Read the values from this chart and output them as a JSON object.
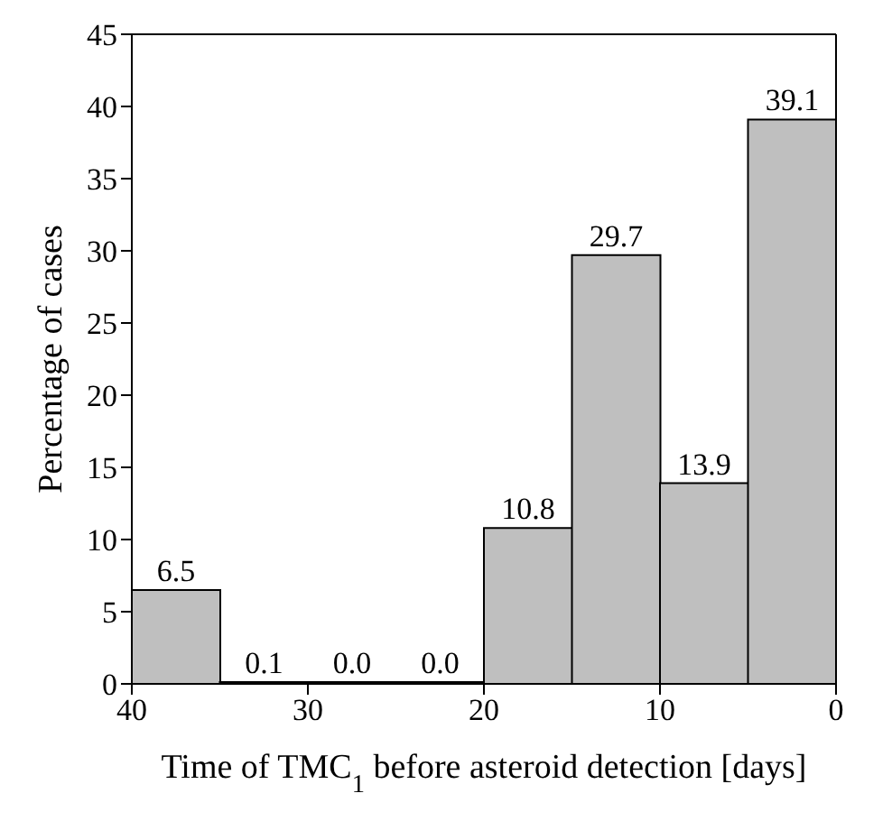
{
  "chart_data": {
    "type": "histogram",
    "xlabel": "Time of TMC$_{1}$ before asteroid detection [days]",
    "ylabel": "Percentage of cases",
    "bins": [
      40,
      35,
      30,
      25,
      20,
      15,
      10,
      5,
      0
    ],
    "values": [
      6.5,
      0.1,
      0,
      0,
      10.8,
      29.7,
      13.9,
      39.1
    ],
    "value_labels": [
      "6.5",
      "0.1",
      "0.0",
      "0.0",
      "10.8",
      "29.7",
      "13.9",
      "39.1"
    ],
    "color": "#bfbfbf",
    "xlim": [
      40,
      0
    ],
    "xticks": [
      40,
      30,
      20,
      10,
      0
    ],
    "ylim": [
      0,
      45
    ],
    "yticks": [
      0,
      5,
      10,
      15,
      20,
      25,
      30,
      35,
      40,
      45
    ],
    "grid": false
  }
}
